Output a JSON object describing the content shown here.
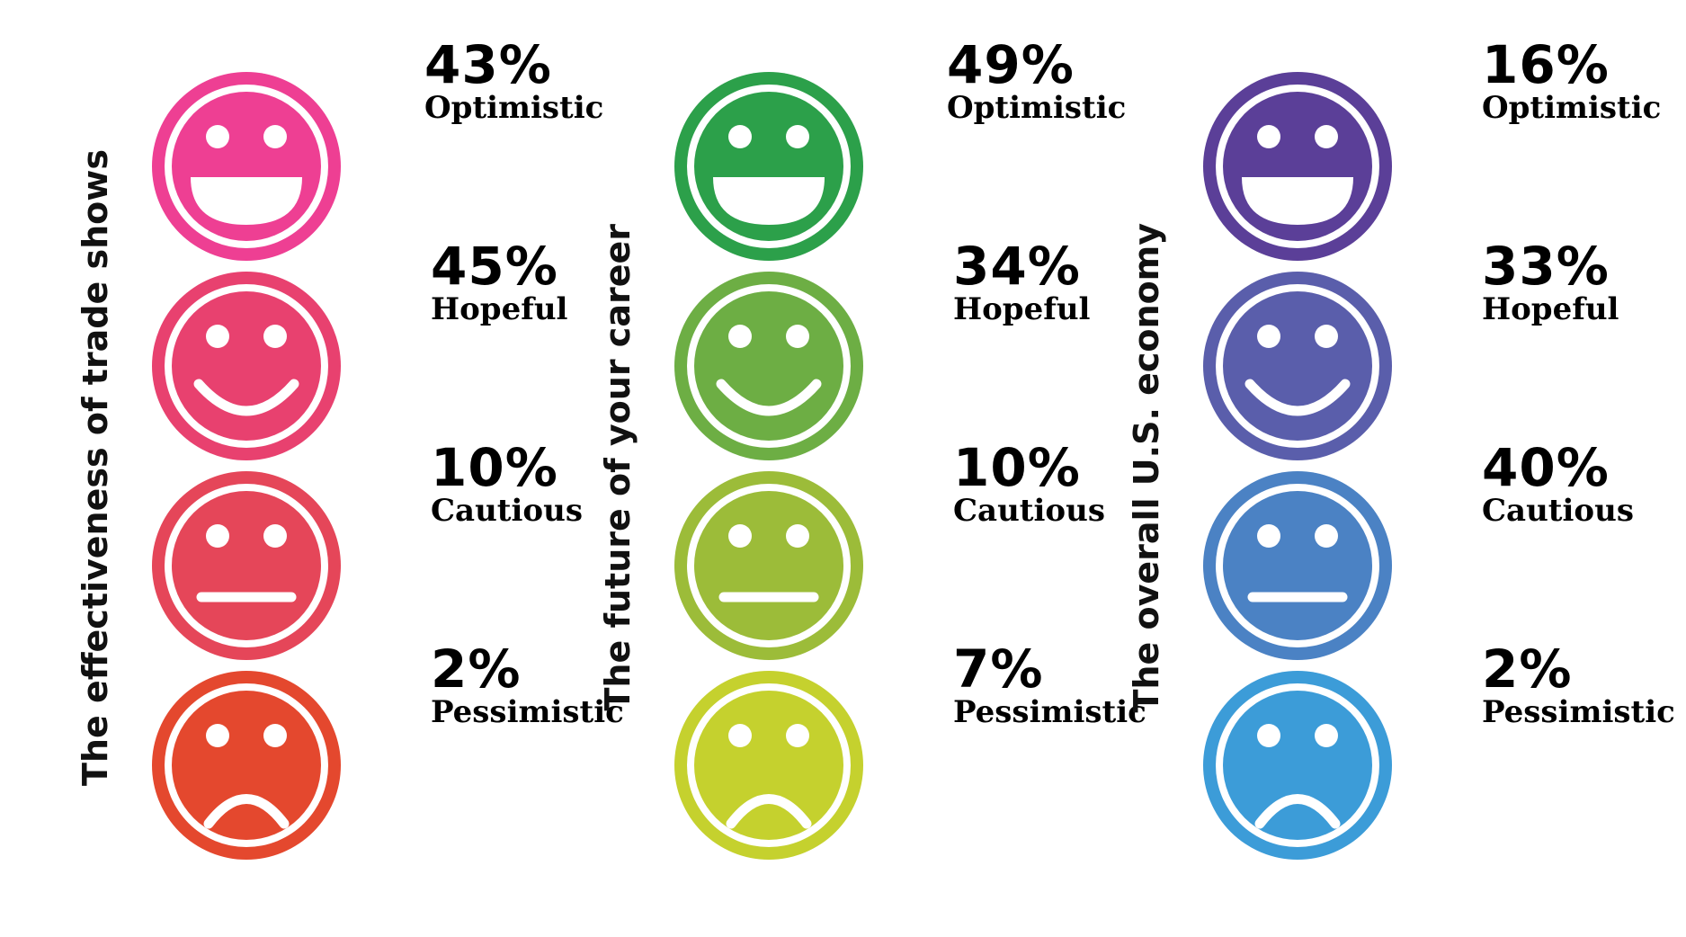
{
  "chart_data": [
    {
      "type": "table",
      "title": "The effectiveness of trade shows",
      "categories": [
        "Optimistic",
        "Hopeful",
        "Cautious",
        "Pessimistic"
      ],
      "values": [
        43,
        45,
        10,
        2
      ],
      "value_labels": [
        "43%",
        "45%",
        "10%",
        "2%"
      ],
      "colors": [
        "#ee3f93",
        "#e8416f",
        "#e54659",
        "#e4482e"
      ]
    },
    {
      "type": "table",
      "title": "The future of your career",
      "categories": [
        "Optimistic",
        "Hopeful",
        "Cautious",
        "Pessimistic"
      ],
      "values": [
        49,
        34,
        10,
        7
      ],
      "value_labels": [
        "49%",
        "34%",
        "10%",
        "7%"
      ],
      "colors": [
        "#2ca04a",
        "#6dae44",
        "#9cbc39",
        "#c5d12e"
      ]
    },
    {
      "type": "table",
      "title": "The overall U.S. economy",
      "categories": [
        "Optimistic",
        "Hopeful",
        "Cautious",
        "Pessimistic"
      ],
      "values": [
        16,
        33,
        40,
        2
      ],
      "value_labels": [
        "16%",
        "33%",
        "40%",
        "2%"
      ],
      "colors": [
        "#5b3f98",
        "#5a5eab",
        "#4b82c4",
        "#3c9cd8"
      ]
    }
  ],
  "face_icons": [
    "grin-face-icon",
    "smile-face-icon",
    "neutral-face-icon",
    "frown-face-icon"
  ]
}
